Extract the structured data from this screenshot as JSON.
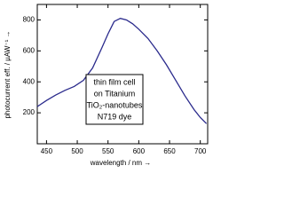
{
  "chart_data": {
    "type": "line",
    "x_label": "wavelength / nm →",
    "y_label": "photocurrent eff. / µAW⁻¹ →",
    "annotation": [
      "thin film cell",
      "on Titanium",
      "TiO₂-nanotubes",
      "N719 dye"
    ],
    "x": [
      435,
      450,
      465,
      480,
      495,
      510,
      525,
      540,
      550,
      560,
      570,
      580,
      590,
      600,
      615,
      630,
      645,
      660,
      675,
      690,
      700,
      710
    ],
    "series": [
      {
        "color": "#2a2a8c",
        "values": [
          240,
          280,
          315,
          345,
          370,
          410,
          490,
          620,
          710,
          790,
          810,
          800,
          775,
          740,
          680,
          600,
          510,
          410,
          310,
          220,
          170,
          130
        ]
      }
    ],
    "xlim": [
      435,
      712
    ],
    "ylim": [
      0,
      900
    ],
    "xticks": [
      450,
      500,
      550,
      600,
      650,
      700
    ],
    "yticks": [
      200,
      400,
      600,
      800
    ]
  }
}
